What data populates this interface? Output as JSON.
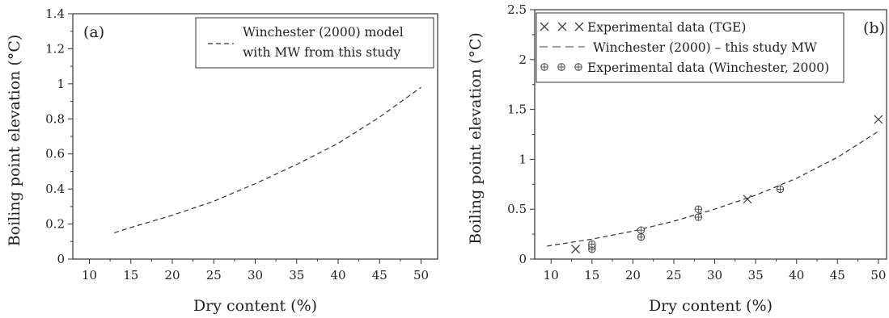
{
  "chart_data": [
    {
      "type": "line",
      "panel_label": "(a)",
      "xlabel": "Dry content (%)",
      "ylabel": "Boiling point elevation (°C)",
      "xlim": [
        8,
        52
      ],
      "ylim": [
        0,
        1.4
      ],
      "xticks": [
        10,
        15,
        20,
        25,
        30,
        35,
        40,
        45,
        50
      ],
      "yticks": [
        0,
        0.2,
        0.4,
        0.6,
        0.8,
        1,
        1.2,
        1.4
      ],
      "xtick_labels": [
        "10",
        "15",
        "20",
        "25",
        "30",
        "35",
        "40",
        "45",
        "50"
      ],
      "ytick_labels": [
        "0",
        "0.2",
        "0.4",
        "0.6",
        "0.8",
        "1",
        "1.2",
        "1.4"
      ],
      "grid": false,
      "legend_position": "top-right",
      "legend": [
        "Winchester (2000) model",
        "with MW from this study"
      ],
      "series": [
        {
          "name": "Winchester (2000) model with MW from this study",
          "style": "dashed",
          "x": [
            13,
            15,
            20,
            25,
            30,
            35,
            40,
            45,
            50
          ],
          "y": [
            0.15,
            0.18,
            0.25,
            0.33,
            0.43,
            0.54,
            0.66,
            0.81,
            0.98
          ]
        }
      ]
    },
    {
      "type": "scatter",
      "panel_label": "(b)",
      "xlabel": "Dry content (%)",
      "ylabel": "Boiling point elevation (°C)",
      "xlim": [
        8,
        51
      ],
      "ylim": [
        0,
        2.5
      ],
      "xticks": [
        10,
        15,
        20,
        25,
        30,
        35,
        40,
        45,
        50
      ],
      "yticks": [
        0,
        0.5,
        1,
        1.5,
        2,
        2.5
      ],
      "xtick_labels": [
        "10",
        "15",
        "20",
        "25",
        "30",
        "35",
        "40",
        "45",
        "50"
      ],
      "ytick_labels": [
        "0",
        "0.5",
        "1",
        "1.5",
        "2",
        "2.5"
      ],
      "grid": false,
      "legend_position": "top-left",
      "series": [
        {
          "name": "Experimental data (TGE)",
          "marker": "x",
          "x": [
            13,
            34,
            50
          ],
          "y": [
            0.1,
            0.6,
            1.4
          ]
        },
        {
          "name": "Winchester (2000)  –  this study MW",
          "style": "dashed",
          "x": [
            9.5,
            15,
            20,
            25,
            30,
            35,
            40,
            45,
            50
          ],
          "y": [
            0.13,
            0.2,
            0.28,
            0.38,
            0.5,
            0.64,
            0.81,
            1.02,
            1.28
          ]
        },
        {
          "name": "Experimental data (Winchester, 2000)",
          "marker": "circle-plus",
          "x": [
            15,
            15,
            15,
            21,
            21,
            28,
            28,
            38
          ],
          "y": [
            0.1,
            0.13,
            0.15,
            0.22,
            0.29,
            0.42,
            0.5,
            0.7
          ]
        }
      ]
    }
  ]
}
